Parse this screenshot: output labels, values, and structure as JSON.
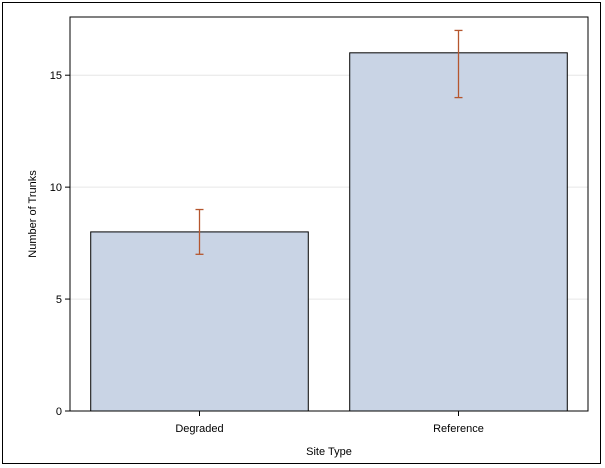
{
  "chart_data": {
    "type": "bar",
    "categories": [
      "Degraded",
      "Reference"
    ],
    "values": [
      8,
      16
    ],
    "error_bars": [
      {
        "category": "Degraded",
        "low": 7,
        "high": 9
      },
      {
        "category": "Reference",
        "low": 14,
        "high": 17
      }
    ],
    "xlabel": "Site Type",
    "ylabel": "Number of Trunks",
    "ylim": [
      0,
      17.6
    ],
    "yticks": [
      0,
      5,
      10,
      15
    ],
    "grid": true,
    "colors": {
      "bar_fill": "#c9d4e5",
      "bar_stroke": "#000000",
      "error_bar": "#b5562e",
      "grid": "#e6e6e6",
      "axis": "#000000"
    }
  }
}
